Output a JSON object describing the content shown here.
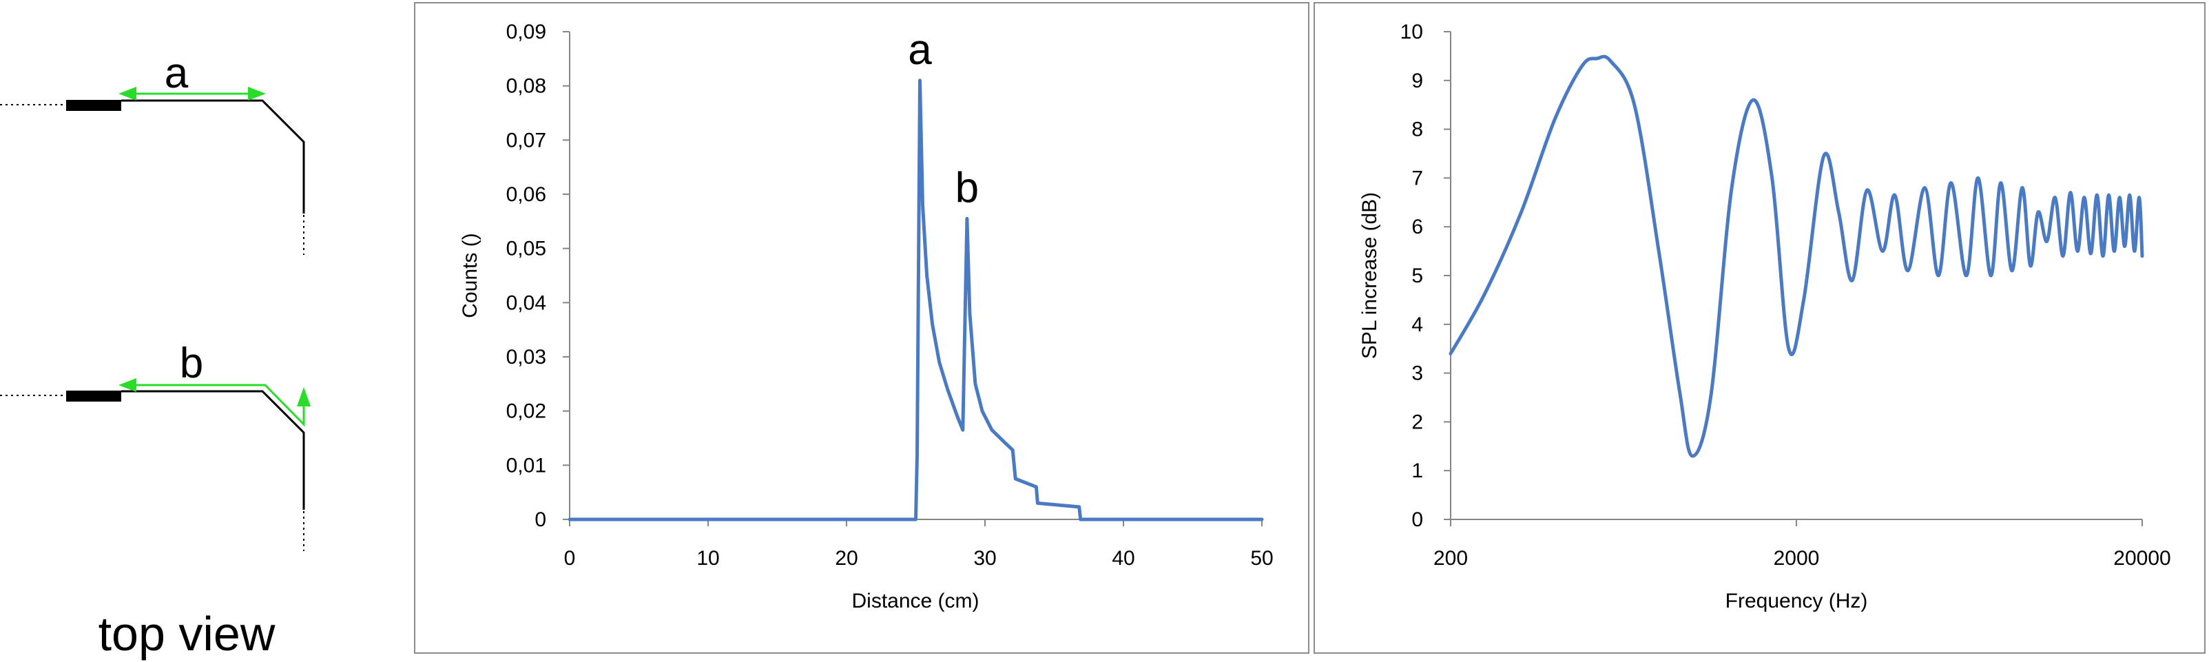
{
  "diagram": {
    "label_a": "a",
    "label_b": "b",
    "caption": "top view"
  },
  "chart_data": [
    {
      "type": "line",
      "title": "",
      "xlabel": "Distance (cm)",
      "ylabel": "Counts ()",
      "xlim": [
        0,
        50
      ],
      "ylim": [
        0,
        0.09
      ],
      "xticks": [
        "0",
        "10",
        "20",
        "30",
        "40",
        "50"
      ],
      "yticks": [
        "0",
        "0,01",
        "0,02",
        "0,03",
        "0,04",
        "0,05",
        "0,06",
        "0,07",
        "0,08",
        "0,09"
      ],
      "annotations": [
        {
          "text": "a",
          "x": 25.3,
          "y": 0.081
        },
        {
          "text": "b",
          "x": 28.7,
          "y": 0.0555
        }
      ],
      "series": [
        {
          "color": "#4a7ac3",
          "x": [
            0,
            25.0,
            25.1,
            25.3,
            25.5,
            25.8,
            26.2,
            26.7,
            27.3,
            28.0,
            28.4,
            28.7,
            28.9,
            29.3,
            29.8,
            30.5,
            31.3,
            32.0,
            32.2,
            33.7,
            33.8,
            36.8,
            36.9,
            50
          ],
          "y": [
            0,
            0,
            0.012,
            0.081,
            0.058,
            0.045,
            0.036,
            0.029,
            0.024,
            0.019,
            0.0165,
            0.0555,
            0.038,
            0.025,
            0.02,
            0.0165,
            0.0145,
            0.0128,
            0.0075,
            0.006,
            0.003,
            0.0023,
            0,
            0
          ]
        }
      ]
    },
    {
      "type": "line",
      "title": "",
      "xlabel": "Frequency (Hz)",
      "ylabel": "SPL increase (dB)",
      "xscale": "log",
      "xlim": [
        200,
        20000
      ],
      "ylim": [
        0,
        10
      ],
      "xticks": [
        "200",
        "2000",
        "20000"
      ],
      "yticks": [
        "0",
        "1",
        "2",
        "3",
        "4",
        "5",
        "6",
        "7",
        "8",
        "9",
        "10"
      ],
      "series": [
        {
          "color": "#4a7ac3",
          "x": [
            200,
            250,
            320,
            400,
            480,
            530,
            580,
            680,
            800,
            920,
            1000,
            1130,
            1300,
            1500,
            1700,
            1900,
            2100,
            2400,
            2650,
            2900,
            3200,
            3550,
            3850,
            4200,
            4700,
            5150,
            5600,
            6200,
            6700,
            7300,
            7800,
            8400,
            9000,
            9500,
            10000,
            10600,
            11200,
            11800,
            12400,
            13000,
            13600,
            14200,
            14800,
            15400,
            16000,
            16600,
            17200,
            17800,
            18400,
            19000,
            19600,
            20000
          ],
          "y": [
            3.4,
            4.6,
            6.3,
            8.2,
            9.3,
            9.45,
            9.4,
            8.5,
            5.5,
            2.6,
            1.3,
            2.5,
            6.8,
            8.6,
            7.0,
            3.5,
            4.5,
            7.45,
            6.3,
            4.9,
            6.75,
            5.5,
            6.65,
            5.1,
            6.8,
            5.0,
            6.9,
            5.0,
            7.0,
            5.0,
            6.9,
            5.1,
            6.8,
            5.2,
            6.3,
            5.7,
            6.6,
            5.4,
            6.7,
            5.5,
            6.6,
            5.45,
            6.65,
            5.4,
            6.65,
            5.5,
            6.6,
            5.6,
            6.65,
            5.5,
            6.6,
            5.4
          ]
        }
      ]
    }
  ]
}
